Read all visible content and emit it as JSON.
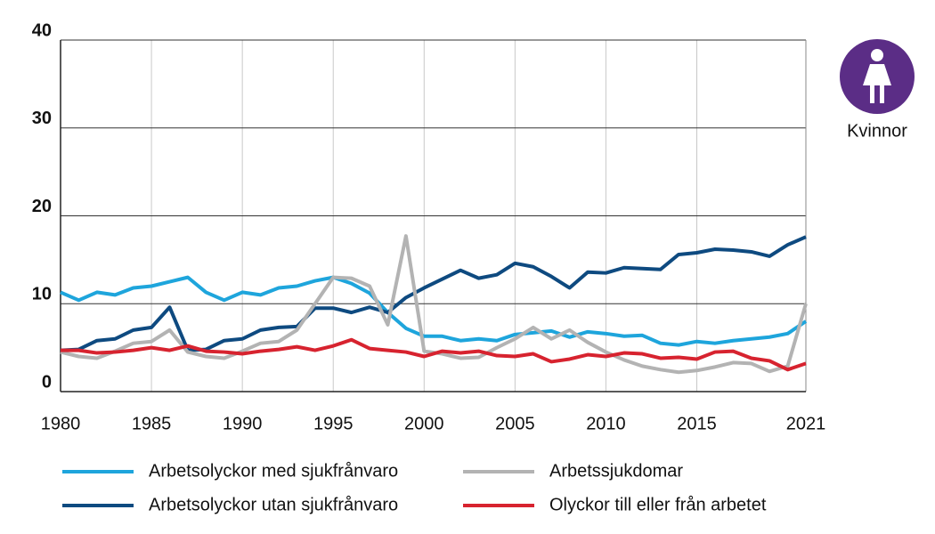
{
  "chart_data": {
    "type": "line",
    "badge_label": "Kvinnor",
    "x": [
      1980,
      1981,
      1982,
      1983,
      1984,
      1985,
      1986,
      1987,
      1988,
      1989,
      1990,
      1991,
      1992,
      1993,
      1994,
      1995,
      1996,
      1997,
      1998,
      1999,
      2000,
      2001,
      2002,
      2003,
      2004,
      2005,
      2006,
      2007,
      2008,
      2009,
      2010,
      2011,
      2012,
      2013,
      2014,
      2015,
      2016,
      2017,
      2018,
      2019,
      2020,
      2021
    ],
    "series": [
      {
        "name": "Arbetsolyckor med sjukfrånvaro",
        "color": "#1ea5dc",
        "values": [
          11.3,
          10.4,
          11.3,
          11.0,
          11.8,
          12.0,
          12.5,
          13.0,
          11.3,
          10.4,
          11.3,
          11.0,
          11.8,
          12.0,
          12.6,
          13.0,
          12.3,
          11.2,
          9.0,
          7.2,
          6.3,
          6.3,
          5.8,
          6.0,
          5.8,
          6.5,
          6.7,
          6.9,
          6.2,
          6.8,
          6.6,
          6.3,
          6.4,
          5.5,
          5.3,
          5.7,
          5.5,
          5.8,
          6.0,
          6.2,
          6.6,
          8.0
        ]
      },
      {
        "name": "Arbetsolyckor utan sjukfrånvaro",
        "color": "#0e4a80",
        "values": [
          4.7,
          4.8,
          5.8,
          6.0,
          7.0,
          7.3,
          9.6,
          4.7,
          4.8,
          5.8,
          6.0,
          7.0,
          7.3,
          7.4,
          9.5,
          9.5,
          9.0,
          9.6,
          9.0,
          10.7,
          11.8,
          12.8,
          13.8,
          12.9,
          13.3,
          14.6,
          14.2,
          13.1,
          11.8,
          13.6,
          13.5,
          14.1,
          14.0,
          13.9,
          15.6,
          15.8,
          16.2,
          16.1,
          15.9,
          15.4,
          16.7,
          17.6
        ]
      },
      {
        "name": "Arbetssjukdomar",
        "color": "#b3b3b3",
        "values": [
          4.5,
          4.0,
          3.8,
          4.6,
          5.5,
          5.7,
          7.0,
          4.5,
          4.0,
          3.8,
          4.6,
          5.5,
          5.7,
          7.0,
          10.0,
          13.0,
          12.9,
          12.0,
          7.6,
          17.7,
          4.6,
          4.3,
          3.8,
          3.9,
          5.0,
          6.0,
          7.3,
          6.0,
          7.0,
          5.6,
          4.5,
          3.6,
          2.9,
          2.5,
          2.2,
          2.4,
          2.8,
          3.3,
          3.2,
          2.3,
          2.9,
          10.0
        ]
      },
      {
        "name": "Olyckor till eller från arbetet",
        "color": "#d7232f",
        "values": [
          4.7,
          4.7,
          4.4,
          4.5,
          4.7,
          5.0,
          4.7,
          5.2,
          4.6,
          4.5,
          4.3,
          4.6,
          4.8,
          5.1,
          4.7,
          5.2,
          5.9,
          4.9,
          4.7,
          4.5,
          4.0,
          4.6,
          4.4,
          4.6,
          4.1,
          4.0,
          4.3,
          3.4,
          3.7,
          4.2,
          4.0,
          4.4,
          4.3,
          3.8,
          3.9,
          3.7,
          4.5,
          4.6,
          3.8,
          3.5,
          2.5,
          3.2
        ]
      }
    ],
    "xlim": [
      1980,
      2021
    ],
    "xticks": [
      1980,
      1985,
      1990,
      1995,
      2000,
      2005,
      2010,
      2015,
      2021
    ],
    "ylim": [
      0,
      40
    ],
    "yticks": [
      0,
      10,
      20,
      30,
      40
    ],
    "grid": true
  }
}
